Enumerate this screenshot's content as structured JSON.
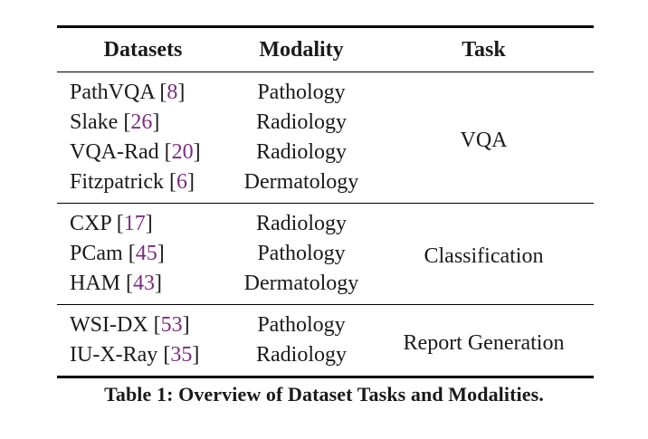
{
  "headers": {
    "dataset": "Datasets",
    "modality": "Modality",
    "task": "Task"
  },
  "groups": [
    {
      "task": "VQA",
      "rows": [
        {
          "name": "PathVQA",
          "cite": "8",
          "modality": "Pathology"
        },
        {
          "name": "Slake",
          "cite": "26",
          "modality": "Radiology"
        },
        {
          "name": "VQA-Rad",
          "cite": "20",
          "modality": "Radiology"
        },
        {
          "name": "Fitzpatrick",
          "cite": "6",
          "modality": "Dermatology"
        }
      ]
    },
    {
      "task": "Classification",
      "rows": [
        {
          "name": "CXP",
          "cite": "17",
          "modality": "Radiology"
        },
        {
          "name": "PCam",
          "cite": "45",
          "modality": "Pathology"
        },
        {
          "name": "HAM",
          "cite": "43",
          "modality": "Dermatology"
        }
      ]
    },
    {
      "task": "Report Generation",
      "rows": [
        {
          "name": "WSI-DX",
          "cite": "53",
          "modality": "Pathology"
        },
        {
          "name": "IU-X-Ray",
          "cite": "35",
          "modality": "Radiology"
        }
      ]
    }
  ],
  "caption": "Table 1: Overview of Dataset Tasks and Modalities.",
  "colors": {
    "citation": "#7b2c7f",
    "text": "#1a1a1a",
    "rule": "#000000"
  }
}
